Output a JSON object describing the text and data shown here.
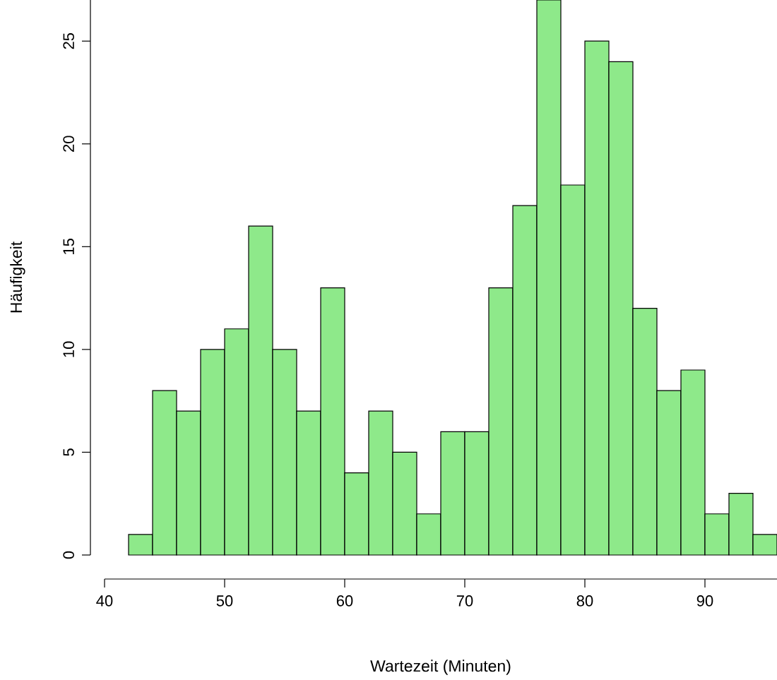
{
  "chart_data": {
    "type": "histogram",
    "xlabel": "Wartezeit (Minuten)",
    "ylabel": "Häufigkeit",
    "bins": [
      42,
      44,
      46,
      48,
      50,
      52,
      54,
      56,
      58,
      60,
      62,
      64,
      66,
      68,
      70,
      72,
      74,
      76,
      78,
      80,
      82,
      84,
      86,
      88,
      90,
      92,
      94,
      96
    ],
    "values": [
      1,
      8,
      7,
      10,
      11,
      16,
      10,
      7,
      13,
      4,
      7,
      5,
      2,
      6,
      6,
      13,
      17,
      27,
      18,
      25,
      24,
      12,
      8,
      9,
      2,
      3,
      1
    ],
    "color": "#8ee98a",
    "xlim": [
      40,
      96
    ],
    "ylim": [
      0,
      27
    ],
    "xticks": [
      40,
      50,
      60,
      70,
      80,
      90
    ],
    "yticks": [
      0,
      5,
      10,
      15,
      20,
      25
    ],
    "grid": false
  }
}
